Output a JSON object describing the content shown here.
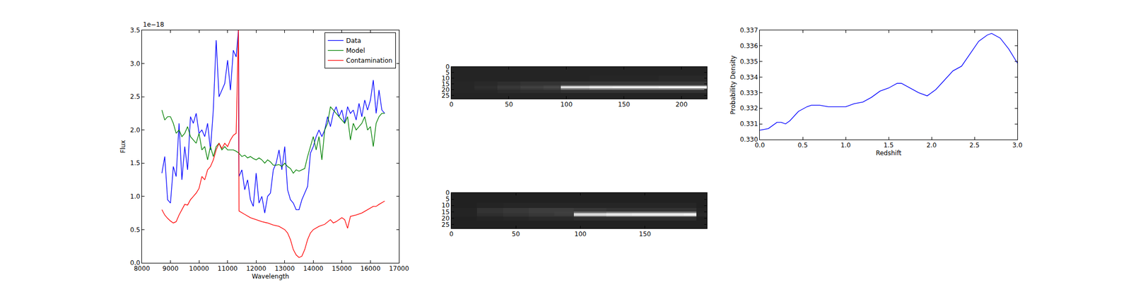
{
  "chart_data": [
    {
      "type": "line",
      "x_label": "Wavelength",
      "y_label": "Flux",
      "annotations": [
        {
          "text": "1e−18"
        }
      ],
      "xlim": [
        8000,
        17000
      ],
      "xticks": [
        8000,
        9000,
        10000,
        11000,
        12000,
        13000,
        14000,
        15000,
        16000,
        17000
      ],
      "ylim": [
        0,
        3.5
      ],
      "yticks": [
        {
          "value": 0,
          "label": "0.0"
        },
        {
          "value": 0.5,
          "label": "0.5"
        },
        {
          "value": 1,
          "label": "1.0"
        },
        {
          "value": 1.5,
          "label": "1.5"
        },
        {
          "value": 2,
          "label": "2.0"
        },
        {
          "value": 2.5,
          "label": "2.5"
        },
        {
          "value": 3,
          "label": "3.0"
        },
        {
          "value": 3.5,
          "label": "3.5"
        }
      ],
      "legend": "upper right",
      "series": [
        {
          "name": "Data",
          "color": "#0000ff",
          "x": [
            8700,
            8800,
            8900,
            9000,
            9100,
            9200,
            9300,
            9400,
            9500,
            9600,
            9700,
            9800,
            9900,
            10000,
            10100,
            10200,
            10300,
            10400,
            10500,
            10600,
            10700,
            10800,
            10900,
            11000,
            11100,
            11200,
            11300,
            11380,
            11400,
            11500,
            11600,
            11700,
            11800,
            11900,
            12000,
            12100,
            12200,
            12300,
            12400,
            12500,
            12600,
            12700,
            12800,
            12900,
            13000,
            13100,
            13200,
            13300,
            13400,
            13500,
            13600,
            13700,
            13800,
            13900,
            14000,
            14100,
            14200,
            14300,
            14400,
            14500,
            14600,
            14700,
            14800,
            14900,
            15000,
            15100,
            15200,
            15300,
            15400,
            15500,
            15600,
            15700,
            15800,
            15900,
            16000,
            16100,
            16200,
            16300,
            16400,
            16500
          ],
          "values": [
            1.35,
            1.6,
            0.95,
            0.9,
            1.45,
            1.3,
            2.1,
            1.25,
            1.75,
            1.4,
            2.2,
            2.1,
            2.25,
            1.95,
            2.0,
            1.9,
            2.1,
            1.7,
            2.3,
            3.35,
            2.5,
            2.6,
            2.7,
            3.05,
            2.6,
            3.2,
            3.1,
            3.5,
            1.3,
            1.4,
            1.1,
            1.25,
            0.95,
            0.85,
            1.35,
            0.9,
            1.0,
            0.75,
            1.0,
            1.05,
            1.4,
            1.5,
            1.7,
            1.4,
            1.75,
            1.1,
            0.95,
            0.9,
            0.8,
            0.8,
            0.95,
            1.05,
            1.15,
            1.65,
            1.75,
            1.9,
            2.0,
            1.9,
            2.0,
            2.2,
            2.05,
            2.25,
            2.35,
            2.2,
            2.3,
            2.1,
            2.35,
            2.25,
            2.3,
            2.15,
            2.4,
            2.2,
            2.45,
            2.3,
            2.45,
            2.75,
            2.25,
            2.6,
            2.3,
            2.25
          ]
        },
        {
          "name": "Model",
          "color": "#008000",
          "x": [
            8700,
            8800,
            8900,
            9000,
            9100,
            9200,
            9300,
            9400,
            9500,
            9600,
            9700,
            9800,
            9900,
            10000,
            10100,
            10200,
            10300,
            10400,
            10500,
            10600,
            10700,
            10800,
            10900,
            11000,
            11100,
            11200,
            11300,
            11400,
            11500,
            11600,
            11700,
            11800,
            11900,
            12000,
            12100,
            12200,
            12300,
            12400,
            12500,
            12600,
            12700,
            12800,
            12900,
            13000,
            13100,
            13200,
            13300,
            13400,
            13500,
            13600,
            13700,
            13800,
            13900,
            14000,
            14100,
            14200,
            14300,
            14400,
            14500,
            14600,
            14700,
            14800,
            14900,
            15000,
            15100,
            15200,
            15300,
            15400,
            15500,
            15600,
            15700,
            15800,
            15900,
            16000,
            16100,
            16200,
            16300,
            16400,
            16500
          ],
          "values": [
            2.3,
            2.15,
            2.2,
            2.2,
            2.1,
            1.95,
            2.0,
            1.9,
            1.95,
            2.05,
            1.9,
            1.85,
            1.8,
            1.95,
            1.7,
            1.75,
            1.55,
            1.75,
            1.6,
            1.75,
            1.8,
            1.7,
            1.75,
            1.7,
            1.7,
            1.7,
            1.68,
            1.65,
            1.6,
            1.62,
            1.58,
            1.6,
            1.57,
            1.55,
            1.58,
            1.55,
            1.5,
            1.55,
            1.52,
            1.47,
            1.47,
            1.48,
            1.45,
            1.5,
            1.45,
            1.42,
            1.35,
            1.4,
            1.38,
            1.4,
            1.42,
            1.6,
            1.75,
            1.9,
            1.7,
            1.9,
            1.55,
            2.0,
            2.1,
            2.35,
            2.3,
            2.25,
            2.2,
            2.15,
            2.1,
            2.2,
            1.85,
            2.1,
            2.0,
            2.05,
            2.1,
            2.2,
            2.0,
            2.05,
            1.75,
            2.1,
            2.2,
            2.25,
            2.25
          ]
        },
        {
          "name": "Contamination",
          "color": "#ff0000",
          "x": [
            8700,
            8800,
            8900,
            9000,
            9100,
            9200,
            9300,
            9400,
            9500,
            9600,
            9700,
            9800,
            9900,
            10000,
            10100,
            10200,
            10300,
            10400,
            10500,
            10600,
            10700,
            10800,
            10900,
            11000,
            11100,
            11200,
            11300,
            11380,
            11400,
            11600,
            11800,
            12000,
            12200,
            12400,
            12600,
            12800,
            13000,
            13100,
            13200,
            13300,
            13400,
            13500,
            13600,
            13700,
            13800,
            13900,
            14000,
            14200,
            14400,
            14600,
            14700,
            14800,
            15000,
            15100,
            15200,
            15300,
            15500,
            15700,
            15900,
            16100,
            16200,
            16300,
            16500
          ],
          "values": [
            0.8,
            0.72,
            0.67,
            0.63,
            0.6,
            0.62,
            0.72,
            0.8,
            0.88,
            0.87,
            0.95,
            1.0,
            1.05,
            1.12,
            1.3,
            1.25,
            1.4,
            1.45,
            1.55,
            1.7,
            1.8,
            1.72,
            1.8,
            1.75,
            1.85,
            1.92,
            1.95,
            3.5,
            0.78,
            0.73,
            0.68,
            0.65,
            0.62,
            0.6,
            0.57,
            0.55,
            0.5,
            0.45,
            0.35,
            0.2,
            0.12,
            0.08,
            0.1,
            0.2,
            0.35,
            0.45,
            0.5,
            0.55,
            0.58,
            0.65,
            0.6,
            0.62,
            0.68,
            0.65,
            0.52,
            0.7,
            0.72,
            0.75,
            0.8,
            0.85,
            0.85,
            0.88,
            0.93
          ]
        }
      ]
    },
    {
      "type": "heatmap",
      "xlim": [
        0,
        222
      ],
      "xticks": [
        0,
        50,
        100,
        150,
        200
      ],
      "ylim": [
        28,
        0
      ],
      "yticks": [
        0,
        5,
        10,
        15,
        20,
        25
      ],
      "zlim": [
        0,
        1
      ],
      "x_edges": [
        0,
        20,
        40,
        60,
        80,
        95,
        120,
        140,
        160,
        180,
        200,
        222
      ],
      "y_edges": [
        0,
        8,
        13,
        16,
        17,
        19,
        20,
        23,
        28
      ],
      "z": [
        [
          0.14,
          0.14,
          0.14,
          0.14,
          0.14,
          0.14,
          0.14,
          0.14,
          0.14,
          0.14,
          0.14
        ],
        [
          0.14,
          0.14,
          0.14,
          0.14,
          0.14,
          0.14,
          0.15,
          0.15,
          0.15,
          0.16,
          0.16
        ],
        [
          0.15,
          0.16,
          0.18,
          0.2,
          0.2,
          0.22,
          0.22,
          0.22,
          0.22,
          0.22,
          0.22
        ],
        [
          0.15,
          0.17,
          0.2,
          0.22,
          0.24,
          0.45,
          0.5,
          0.5,
          0.5,
          0.5,
          0.5
        ],
        [
          0.15,
          0.18,
          0.22,
          0.25,
          0.28,
          0.85,
          0.9,
          0.92,
          0.92,
          0.95,
          0.95
        ],
        [
          0.15,
          0.17,
          0.2,
          0.22,
          0.24,
          0.45,
          0.5,
          0.5,
          0.5,
          0.5,
          0.5
        ],
        [
          0.15,
          0.15,
          0.17,
          0.18,
          0.18,
          0.2,
          0.2,
          0.2,
          0.2,
          0.2,
          0.2
        ],
        [
          0.14,
          0.14,
          0.14,
          0.14,
          0.14,
          0.14,
          0.14,
          0.14,
          0.14,
          0.14,
          0.14
        ]
      ]
    },
    {
      "type": "heatmap",
      "xlim": [
        0,
        198
      ],
      "xticks": [
        0,
        50,
        100,
        150
      ],
      "ylim": [
        28,
        0
      ],
      "yticks": [
        0,
        5,
        10,
        15,
        20,
        25
      ],
      "zlim": [
        0,
        1
      ],
      "x_edges": [
        0,
        20,
        40,
        60,
        80,
        95,
        120,
        140,
        160,
        180,
        190,
        198
      ],
      "y_edges": [
        0,
        8,
        12,
        15,
        16,
        18,
        19,
        22,
        28
      ],
      "z": [
        [
          0.13,
          0.13,
          0.13,
          0.13,
          0.13,
          0.13,
          0.13,
          0.13,
          0.13,
          0.13,
          0.13
        ],
        [
          0.13,
          0.14,
          0.15,
          0.15,
          0.15,
          0.15,
          0.15,
          0.15,
          0.15,
          0.15,
          0.13
        ],
        [
          0.14,
          0.2,
          0.22,
          0.24,
          0.24,
          0.22,
          0.2,
          0.2,
          0.2,
          0.2,
          0.14
        ],
        [
          0.14,
          0.2,
          0.22,
          0.24,
          0.25,
          0.45,
          0.5,
          0.5,
          0.5,
          0.5,
          0.15
        ],
        [
          0.14,
          0.18,
          0.2,
          0.22,
          0.24,
          0.85,
          0.9,
          0.92,
          0.92,
          0.95,
          0.16
        ],
        [
          0.14,
          0.16,
          0.18,
          0.2,
          0.2,
          0.45,
          0.5,
          0.5,
          0.5,
          0.5,
          0.15
        ],
        [
          0.13,
          0.14,
          0.15,
          0.16,
          0.16,
          0.18,
          0.18,
          0.18,
          0.18,
          0.18,
          0.13
        ],
        [
          0.13,
          0.13,
          0.13,
          0.13,
          0.13,
          0.13,
          0.13,
          0.13,
          0.13,
          0.13,
          0.13
        ]
      ]
    },
    {
      "type": "line",
      "x_label": "Redshift",
      "y_label": "Probability Density",
      "color": "#0000ff",
      "xlim": [
        0,
        3
      ],
      "xticks": [
        {
          "value": 0,
          "label": "0.0"
        },
        {
          "value": 0.5,
          "label": "0.5"
        },
        {
          "value": 1,
          "label": "1.0"
        },
        {
          "value": 1.5,
          "label": "1.5"
        },
        {
          "value": 2,
          "label": "2.0"
        },
        {
          "value": 2.5,
          "label": "2.5"
        },
        {
          "value": 3,
          "label": "3.0"
        }
      ],
      "ylim": [
        0.33,
        0.337
      ],
      "yticks": [
        {
          "value": 0.33,
          "label": "0.330"
        },
        {
          "value": 0.331,
          "label": "0.331"
        },
        {
          "value": 0.332,
          "label": "0.332"
        },
        {
          "value": 0.333,
          "label": "0.333"
        },
        {
          "value": 0.334,
          "label": "0.334"
        },
        {
          "value": 0.335,
          "label": "0.335"
        },
        {
          "value": 0.336,
          "label": "0.336"
        },
        {
          "value": 0.337,
          "label": "0.337"
        }
      ],
      "x": [
        0,
        0.1,
        0.2,
        0.25,
        0.3,
        0.35,
        0.45,
        0.55,
        0.6,
        0.7,
        0.8,
        1.0,
        1.1,
        1.2,
        1.3,
        1.4,
        1.5,
        1.6,
        1.65,
        1.75,
        1.85,
        1.95,
        2.05,
        2.15,
        2.25,
        2.35,
        2.45,
        2.55,
        2.65,
        2.7,
        2.8,
        2.9,
        3.0
      ],
      "values": [
        0.3306,
        0.3307,
        0.3311,
        0.3311,
        0.331,
        0.3312,
        0.3318,
        0.3321,
        0.3322,
        0.3322,
        0.3321,
        0.3321,
        0.3323,
        0.3324,
        0.3327,
        0.3331,
        0.3333,
        0.3336,
        0.3336,
        0.3333,
        0.333,
        0.3328,
        0.3332,
        0.3338,
        0.3344,
        0.3347,
        0.3355,
        0.3363,
        0.3367,
        0.3368,
        0.3365,
        0.3358,
        0.3349
      ]
    }
  ]
}
